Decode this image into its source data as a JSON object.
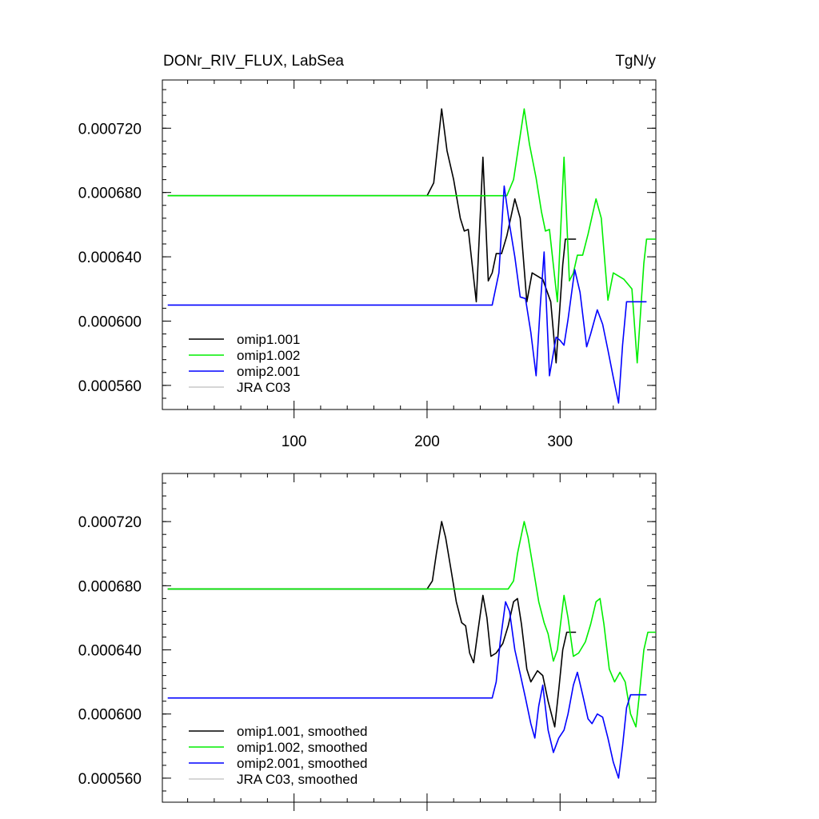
{
  "chart_data": [
    {
      "type": "line",
      "title": "DONr_RIV_FLUX, LabSea",
      "units": "TgN/y",
      "xlim": [
        1,
        372
      ],
      "ylim": [
        0.000545,
        0.00075
      ],
      "x_ticks": [
        100,
        200,
        300
      ],
      "x_tick_labels": [
        "100",
        "200",
        "300"
      ],
      "y_ticks": [
        0.00056,
        0.0006,
        0.00064,
        0.00068,
        0.00072
      ],
      "y_tick_labels": [
        "0.000560",
        "0.000600",
        "0.000640",
        "0.000680",
        "0.000720"
      ],
      "legend_position": "bottom-left",
      "legend": [
        "omip1.001",
        "omip1.002",
        "omip2.001",
        "JRA C03"
      ],
      "series": [
        {
          "name": "omip1.001",
          "color": "#000000",
          "points": [
            [
              5,
              0.000678
            ],
            [
              200,
              0.000678
            ],
            [
              205,
              0.000686
            ],
            [
              211,
              0.000732
            ],
            [
              215,
              0.000706
            ],
            [
              220,
              0.000688
            ],
            [
              225,
              0.000664
            ],
            [
              228,
              0.000656
            ],
            [
              231,
              0.000657
            ],
            [
              237,
              0.000612
            ],
            [
              242,
              0.000702
            ],
            [
              246,
              0.000625
            ],
            [
              249,
              0.00063
            ],
            [
              252,
              0.000642
            ],
            [
              256,
              0.000642
            ],
            [
              260,
              0.000653
            ],
            [
              266,
              0.000676
            ],
            [
              270,
              0.000664
            ],
            [
              275,
              0.000612
            ],
            [
              279,
              0.00063
            ],
            [
              287,
              0.000626
            ],
            [
              293,
              0.000612
            ],
            [
              297,
              0.000574
            ],
            [
              302,
              0.000635
            ],
            [
              304,
              0.000651
            ],
            [
              312,
              0.000651
            ]
          ]
        },
        {
          "name": "omip1.002",
          "color": "#00ee00",
          "points": [
            [
              5,
              0.000678
            ],
            [
              260,
              0.000678
            ],
            [
              265,
              0.000688
            ],
            [
              273,
              0.000732
            ],
            [
              277,
              0.00071
            ],
            [
              282,
              0.000689
            ],
            [
              286,
              0.000668
            ],
            [
              289,
              0.000656
            ],
            [
              292,
              0.000657
            ],
            [
              298,
              0.000612
            ],
            [
              303,
              0.000702
            ],
            [
              307,
              0.000625
            ],
            [
              310,
              0.00063
            ],
            [
              313,
              0.000641
            ],
            [
              317,
              0.000641
            ],
            [
              321,
              0.000654
            ],
            [
              327,
              0.000676
            ],
            [
              331,
              0.000664
            ],
            [
              336,
              0.000613
            ],
            [
              340,
              0.00063
            ],
            [
              348,
              0.000626
            ],
            [
              354,
              0.00062
            ],
            [
              358,
              0.000574
            ],
            [
              363,
              0.000636
            ],
            [
              365,
              0.000651
            ],
            [
              372,
              0.000651
            ]
          ]
        },
        {
          "name": "omip2.001",
          "color": "#0000ff",
          "points": [
            [
              5,
              0.00061
            ],
            [
              249,
              0.00061
            ],
            [
              254,
              0.00063
            ],
            [
              258,
              0.000684
            ],
            [
              262,
              0.00066
            ],
            [
              266,
              0.00064
            ],
            [
              270,
              0.000615
            ],
            [
              274,
              0.000614
            ],
            [
              278,
              0.000593
            ],
            [
              282,
              0.000566
            ],
            [
              285,
              0.000608
            ],
            [
              288,
              0.000643
            ],
            [
              292,
              0.000566
            ],
            [
              297,
              0.00059
            ],
            [
              300,
              0.000588
            ],
            [
              303,
              0.000585
            ],
            [
              306,
              0.000601
            ],
            [
              311,
              0.000632
            ],
            [
              315,
              0.000618
            ],
            [
              320,
              0.000584
            ],
            [
              323,
              0.000592
            ],
            [
              328,
              0.000607
            ],
            [
              332,
              0.000598
            ],
            [
              336,
              0.000582
            ],
            [
              340,
              0.000565
            ],
            [
              344,
              0.000549
            ],
            [
              347,
              0.000585
            ],
            [
              350,
              0.000612
            ],
            [
              365,
              0.000612
            ]
          ]
        },
        {
          "name": "JRA C03",
          "color": "#c8c8c8",
          "points": []
        }
      ]
    },
    {
      "type": "line",
      "title": "",
      "xlim": [
        1,
        372
      ],
      "ylim": [
        0.000545,
        0.00075
      ],
      "x_ticks": [
        100,
        200,
        300
      ],
      "y_ticks": [
        0.00056,
        0.0006,
        0.00064,
        0.00068,
        0.00072
      ],
      "y_tick_labels": [
        "0.000560",
        "0.000600",
        "0.000640",
        "0.000680",
        "0.000720"
      ],
      "legend_position": "bottom-left",
      "legend": [
        "omip1.001, smoothed",
        "omip1.002, smoothed",
        "omip2.001, smoothed",
        "JRA C03, smoothed"
      ],
      "series": [
        {
          "name": "omip1.001, smoothed",
          "color": "#000000",
          "points": [
            [
              5,
              0.000678
            ],
            [
              200,
              0.000678
            ],
            [
              204,
              0.000683
            ],
            [
              207,
              0.0007
            ],
            [
              211,
              0.00072
            ],
            [
              214,
              0.00071
            ],
            [
              218,
              0.00069
            ],
            [
              222,
              0.00067
            ],
            [
              226,
              0.000657
            ],
            [
              229,
              0.000655
            ],
            [
              232,
              0.000638
            ],
            [
              235,
              0.000632
            ],
            [
              238,
              0.00065
            ],
            [
              242,
              0.000674
            ],
            [
              245,
              0.00066
            ],
            [
              248,
              0.000636
            ],
            [
              252,
              0.000638
            ],
            [
              257,
              0.000644
            ],
            [
              261,
              0.000655
            ],
            [
              265,
              0.00067
            ],
            [
              268,
              0.000672
            ],
            [
              271,
              0.000656
            ],
            [
              275,
              0.000628
            ],
            [
              278,
              0.00062
            ],
            [
              283,
              0.000627
            ],
            [
              287,
              0.000624
            ],
            [
              291,
              0.000608
            ],
            [
              296,
              0.000592
            ],
            [
              299,
              0.000615
            ],
            [
              302,
              0.00064
            ],
            [
              305,
              0.000651
            ],
            [
              312,
              0.000651
            ]
          ]
        },
        {
          "name": "omip1.002, smoothed",
          "color": "#00ee00",
          "points": [
            [
              5,
              0.000678
            ],
            [
              261,
              0.000678
            ],
            [
              265,
              0.000683
            ],
            [
              268,
              0.0007
            ],
            [
              273,
              0.00072
            ],
            [
              276,
              0.00071
            ],
            [
              280,
              0.00069
            ],
            [
              284,
              0.00067
            ],
            [
              288,
              0.000657
            ],
            [
              291,
              0.00065
            ],
            [
              295,
              0.000633
            ],
            [
              298,
              0.00064
            ],
            [
              303,
              0.000674
            ],
            [
              306,
              0.00066
            ],
            [
              310,
              0.000636
            ],
            [
              314,
              0.000638
            ],
            [
              319,
              0.000645
            ],
            [
              323,
              0.000656
            ],
            [
              327,
              0.00067
            ],
            [
              330,
              0.000672
            ],
            [
              333,
              0.000656
            ],
            [
              337,
              0.000628
            ],
            [
              341,
              0.00062
            ],
            [
              345,
              0.000626
            ],
            [
              349,
              0.00062
            ],
            [
              353,
              0.0006
            ],
            [
              357,
              0.000592
            ],
            [
              360,
              0.000615
            ],
            [
              363,
              0.00064
            ],
            [
              366,
              0.000651
            ],
            [
              372,
              0.000651
            ]
          ]
        },
        {
          "name": "omip2.001, smoothed",
          "color": "#0000ff",
          "points": [
            [
              5,
              0.00061
            ],
            [
              249,
              0.00061
            ],
            [
              252,
              0.00062
            ],
            [
              255,
              0.000645
            ],
            [
              259,
              0.00067
            ],
            [
              262,
              0.000664
            ],
            [
              266,
              0.00064
            ],
            [
              270,
              0.000625
            ],
            [
              274,
              0.00061
            ],
            [
              278,
              0.000594
            ],
            [
              281,
              0.000585
            ],
            [
              284,
              0.000605
            ],
            [
              287,
              0.000618
            ],
            [
              291,
              0.00059
            ],
            [
              295,
              0.000576
            ],
            [
              299,
              0.000585
            ],
            [
              303,
              0.00059
            ],
            [
              306,
              0.0006
            ],
            [
              310,
              0.000618
            ],
            [
              313,
              0.000626
            ],
            [
              317,
              0.000612
            ],
            [
              321,
              0.000597
            ],
            [
              324,
              0.000594
            ],
            [
              328,
              0.0006
            ],
            [
              332,
              0.000598
            ],
            [
              336,
              0.000585
            ],
            [
              340,
              0.00057
            ],
            [
              344,
              0.00056
            ],
            [
              347,
              0.00058
            ],
            [
              350,
              0.000604
            ],
            [
              353,
              0.000612
            ],
            [
              365,
              0.000612
            ]
          ]
        },
        {
          "name": "JRA C03, smoothed",
          "color": "#c8c8c8",
          "points": []
        }
      ]
    }
  ]
}
